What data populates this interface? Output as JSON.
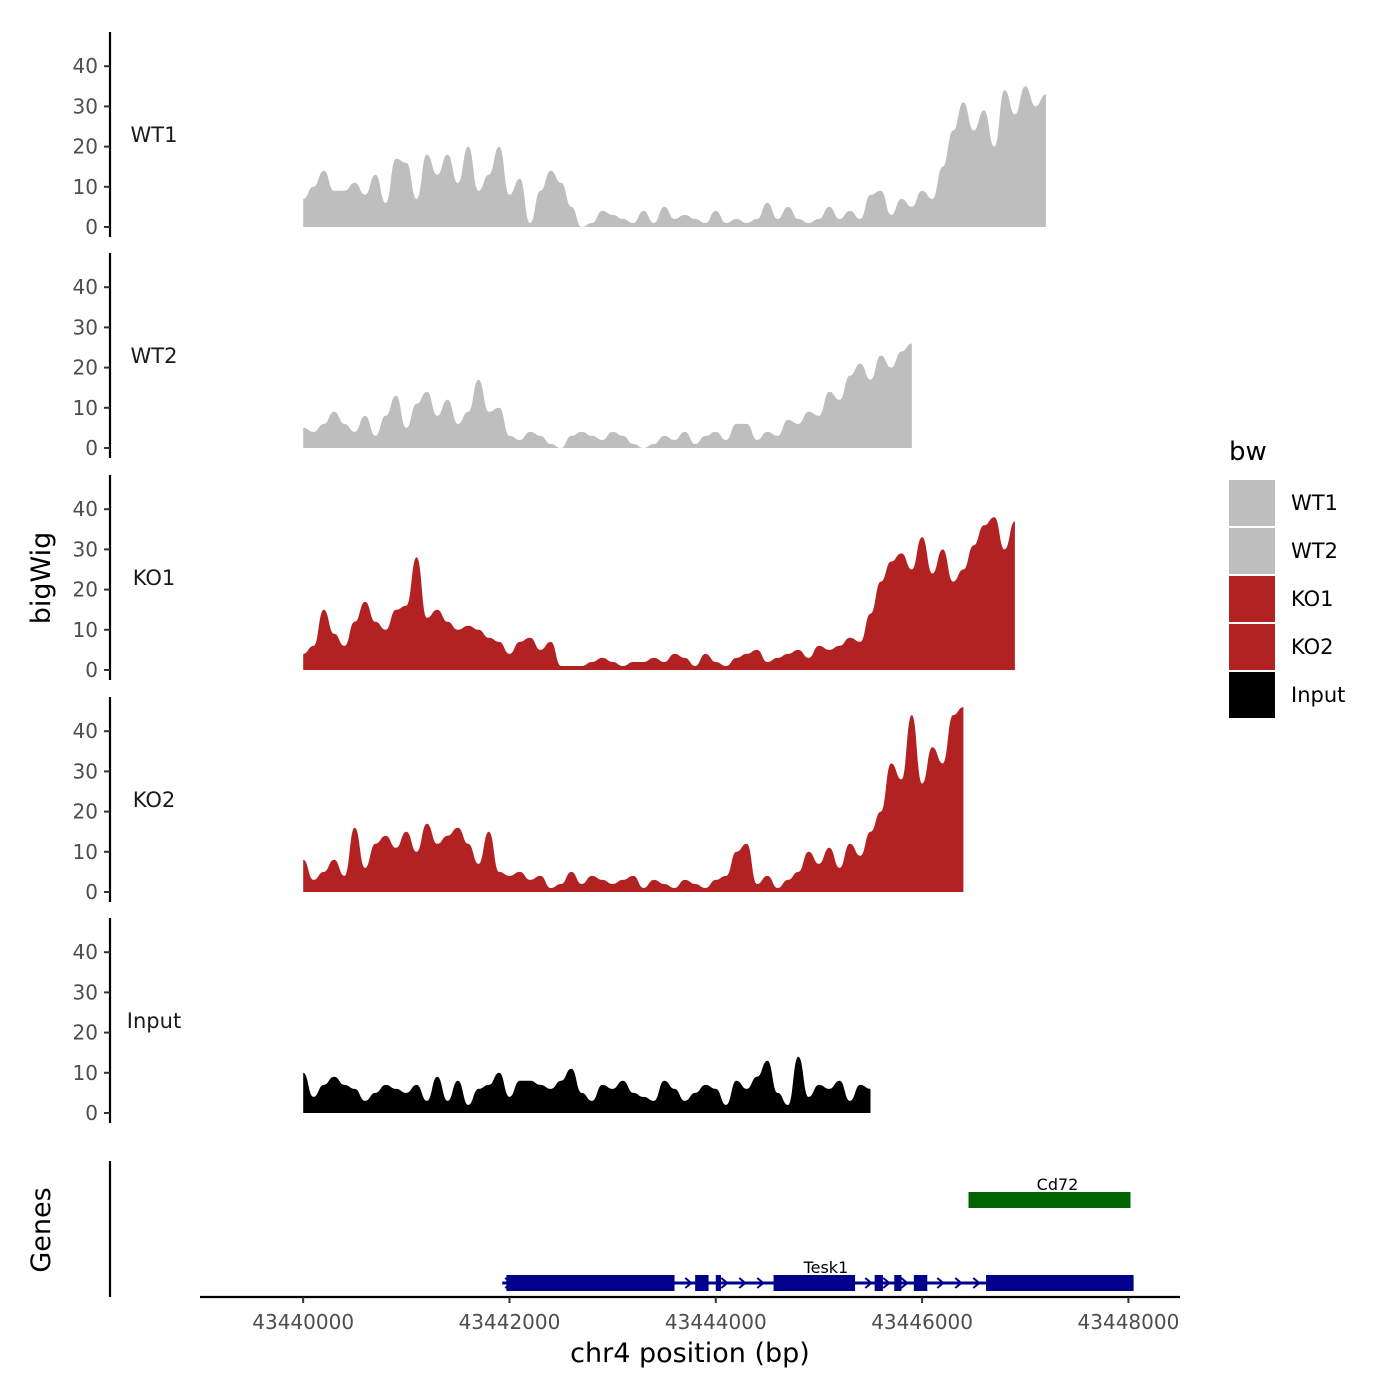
{
  "chart_data": {
    "type": "area",
    "ylabel": "bigWig",
    "xlabel": "chr4 position (bp)",
    "xlim": [
      43439000,
      43448500
    ],
    "xticks": [
      43440000,
      43442000,
      43444000,
      43446000,
      43448000
    ],
    "xtick_labels": [
      "43440000",
      "43442000",
      "43444000",
      "43446000",
      "43448000"
    ],
    "ylim": [
      0,
      50
    ],
    "yticks": [
      0,
      10,
      20,
      30,
      40
    ],
    "ytick_labels": [
      "0",
      "10",
      "20",
      "30",
      "40"
    ],
    "x_start": 43440000,
    "x_step": 100,
    "tracks": [
      {
        "name": "WT1",
        "color": "#bebebe",
        "values": [
          7,
          10,
          14,
          9,
          9,
          11,
          8,
          13,
          6,
          17,
          16,
          7,
          18,
          13,
          18,
          11,
          20,
          9,
          13,
          20,
          8,
          12,
          1,
          9,
          14,
          11,
          5,
          0,
          1,
          4,
          3,
          2,
          1,
          4,
          1,
          5,
          2,
          3,
          2,
          1,
          4,
          1,
          2,
          1,
          2,
          6,
          2,
          5,
          2,
          1,
          2,
          5,
          2,
          4,
          2,
          8,
          9,
          3,
          7,
          5,
          9,
          7,
          15,
          24,
          31,
          24,
          29,
          20,
          34,
          28,
          35,
          30,
          33
        ]
      },
      {
        "name": "WT2",
        "color": "#bebebe",
        "values": [
          5,
          4,
          6,
          9,
          6,
          4,
          8,
          3,
          8,
          13,
          5,
          11,
          14,
          8,
          12,
          6,
          9,
          17,
          9,
          10,
          3,
          2,
          4,
          3,
          1,
          0,
          3,
          4,
          3,
          2,
          4,
          3,
          1,
          0,
          1,
          3,
          2,
          4,
          1,
          3,
          4,
          2,
          6,
          6,
          2,
          4,
          3,
          7,
          6,
          9,
          8,
          14,
          12,
          18,
          21,
          17,
          23,
          20,
          24,
          26
        ]
      },
      {
        "name": "KO1",
        "color": "#b22222",
        "values": [
          4,
          6,
          15,
          9,
          6,
          12,
          17,
          12,
          10,
          15,
          16,
          28,
          13,
          15,
          12,
          10,
          11,
          10,
          8,
          7,
          4,
          7,
          8,
          5,
          7,
          1,
          1,
          1,
          2,
          3,
          2,
          1,
          2,
          2,
          3,
          2,
          4,
          3,
          1,
          4,
          2,
          1,
          3,
          4,
          5,
          2,
          3,
          4,
          5,
          3,
          6,
          5,
          6,
          8,
          7,
          14,
          22,
          27,
          29,
          25,
          33,
          24,
          30,
          22,
          25,
          31,
          36,
          38,
          30,
          37
        ]
      },
      {
        "name": "KO2",
        "color": "#b22222",
        "values": [
          8,
          3,
          5,
          8,
          4,
          16,
          6,
          12,
          14,
          11,
          15,
          10,
          17,
          12,
          14,
          16,
          12,
          7,
          15,
          5,
          4,
          5,
          3,
          4,
          1,
          2,
          5,
          2,
          4,
          3,
          2,
          3,
          4,
          1,
          3,
          2,
          1,
          3,
          2,
          1,
          3,
          4,
          10,
          12,
          2,
          4,
          1,
          3,
          5,
          10,
          7,
          11,
          6,
          12,
          9,
          15,
          20,
          32,
          28,
          44,
          27,
          36,
          32,
          44,
          46
        ]
      },
      {
        "name": "Input",
        "color": "#000000",
        "values": [
          10,
          4,
          7,
          9,
          7,
          6,
          3,
          5,
          7,
          6,
          5,
          7,
          3,
          9,
          3,
          8,
          2,
          6,
          7,
          10,
          4,
          8,
          8,
          7,
          6,
          8,
          11,
          5,
          3,
          7,
          6,
          8,
          5,
          4,
          3,
          8,
          6,
          3,
          5,
          7,
          6,
          2,
          8,
          6,
          9,
          13,
          5,
          2,
          14,
          4,
          7,
          6,
          8,
          3,
          7,
          6
        ]
      }
    ],
    "legend": {
      "title": "bw",
      "entries": [
        {
          "label": "WT1",
          "color": "#bebebe"
        },
        {
          "label": "WT2",
          "color": "#bebebe"
        },
        {
          "label": "KO1",
          "color": "#b22222"
        },
        {
          "label": "KO2",
          "color": "#b22222"
        },
        {
          "label": "Input",
          "color": "#000000"
        }
      ]
    },
    "genes_label": "Genes",
    "genes": [
      {
        "name": "Cd72",
        "color": "#006400",
        "strand": "-",
        "row": 1,
        "start": 43446450,
        "end": 43448020,
        "exons": [
          [
            43446450,
            43447700
          ],
          [
            43447700,
            43448020
          ]
        ]
      },
      {
        "name": "Tesk1",
        "color": "#00008b",
        "strand": "+",
        "row": 2,
        "start": 43441930,
        "end": 43448050,
        "exons": [
          [
            43441970,
            43443600
          ],
          [
            43443800,
            43443930
          ],
          [
            43444000,
            43444050
          ],
          [
            43444560,
            43445350
          ],
          [
            43445540,
            43445620
          ],
          [
            43445730,
            43445800
          ],
          [
            43445920,
            43446050
          ],
          [
            43446620,
            43448050
          ]
        ]
      }
    ]
  }
}
